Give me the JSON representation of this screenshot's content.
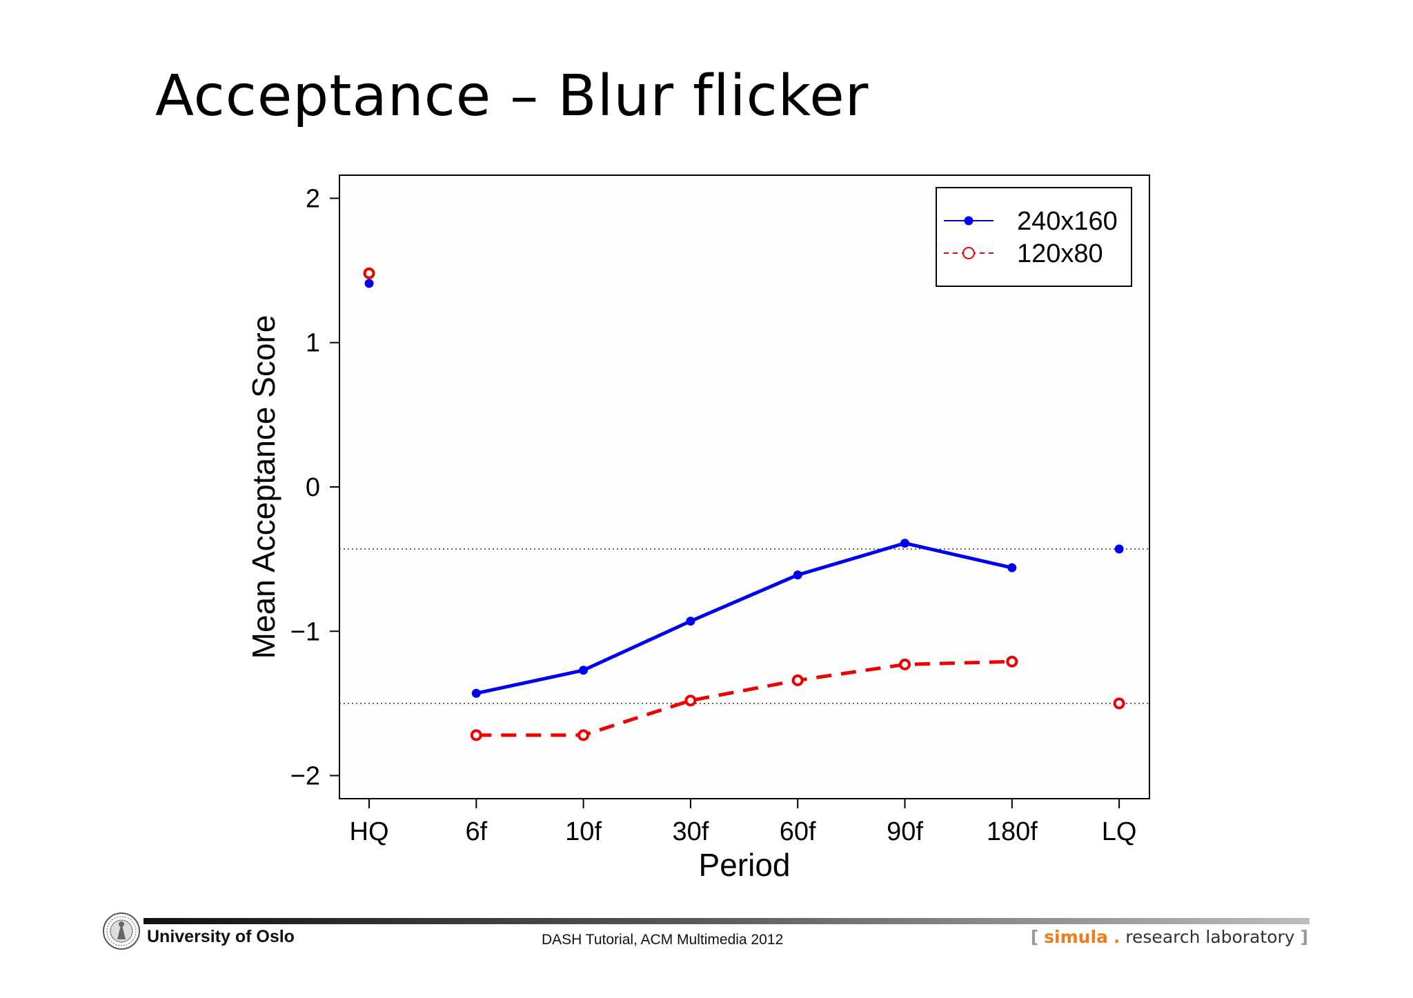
{
  "slide": {
    "title": "Acceptance – Blur flicker"
  },
  "chart_data": {
    "type": "line",
    "categories": [
      "HQ",
      "6f",
      "10f",
      "30f",
      "60f",
      "90f",
      "180f",
      "LQ"
    ],
    "xlabel": "Period",
    "ylabel": "Mean Acceptance Score",
    "ylim": [
      -2.16,
      2.16
    ],
    "yticks": [
      2,
      1,
      0,
      -1,
      -2
    ],
    "ytick_labels": [
      "2",
      "1",
      "0",
      "−1",
      "−2"
    ],
    "reference_lines": [
      -0.43,
      -1.5
    ],
    "legend_position": "top-right",
    "series": [
      {
        "name": "240x160",
        "color": "#0000ee",
        "style": "solid",
        "marker": "filled-circle",
        "values": [
          1.41,
          -1.43,
          -1.27,
          -0.93,
          -0.61,
          -0.39,
          -0.56,
          -0.43
        ],
        "connected": [
          false,
          true,
          true,
          true,
          true,
          true,
          true,
          false
        ]
      },
      {
        "name": "120x80",
        "color": "#ee0000",
        "style": "dashed",
        "marker": "open-circle",
        "values": [
          1.48,
          -1.72,
          -1.72,
          -1.48,
          -1.34,
          -1.23,
          -1.21,
          -1.5
        ],
        "connected": [
          false,
          true,
          true,
          true,
          true,
          true,
          true,
          false
        ]
      }
    ]
  },
  "footer": {
    "university": "University of Oslo",
    "event": "DASH Tutorial, ACM Multimedia 2012",
    "lab_open": "[",
    "lab_simula": "simula",
    "lab_dot": ".",
    "lab_rest": "research laboratory",
    "lab_close": "]"
  }
}
